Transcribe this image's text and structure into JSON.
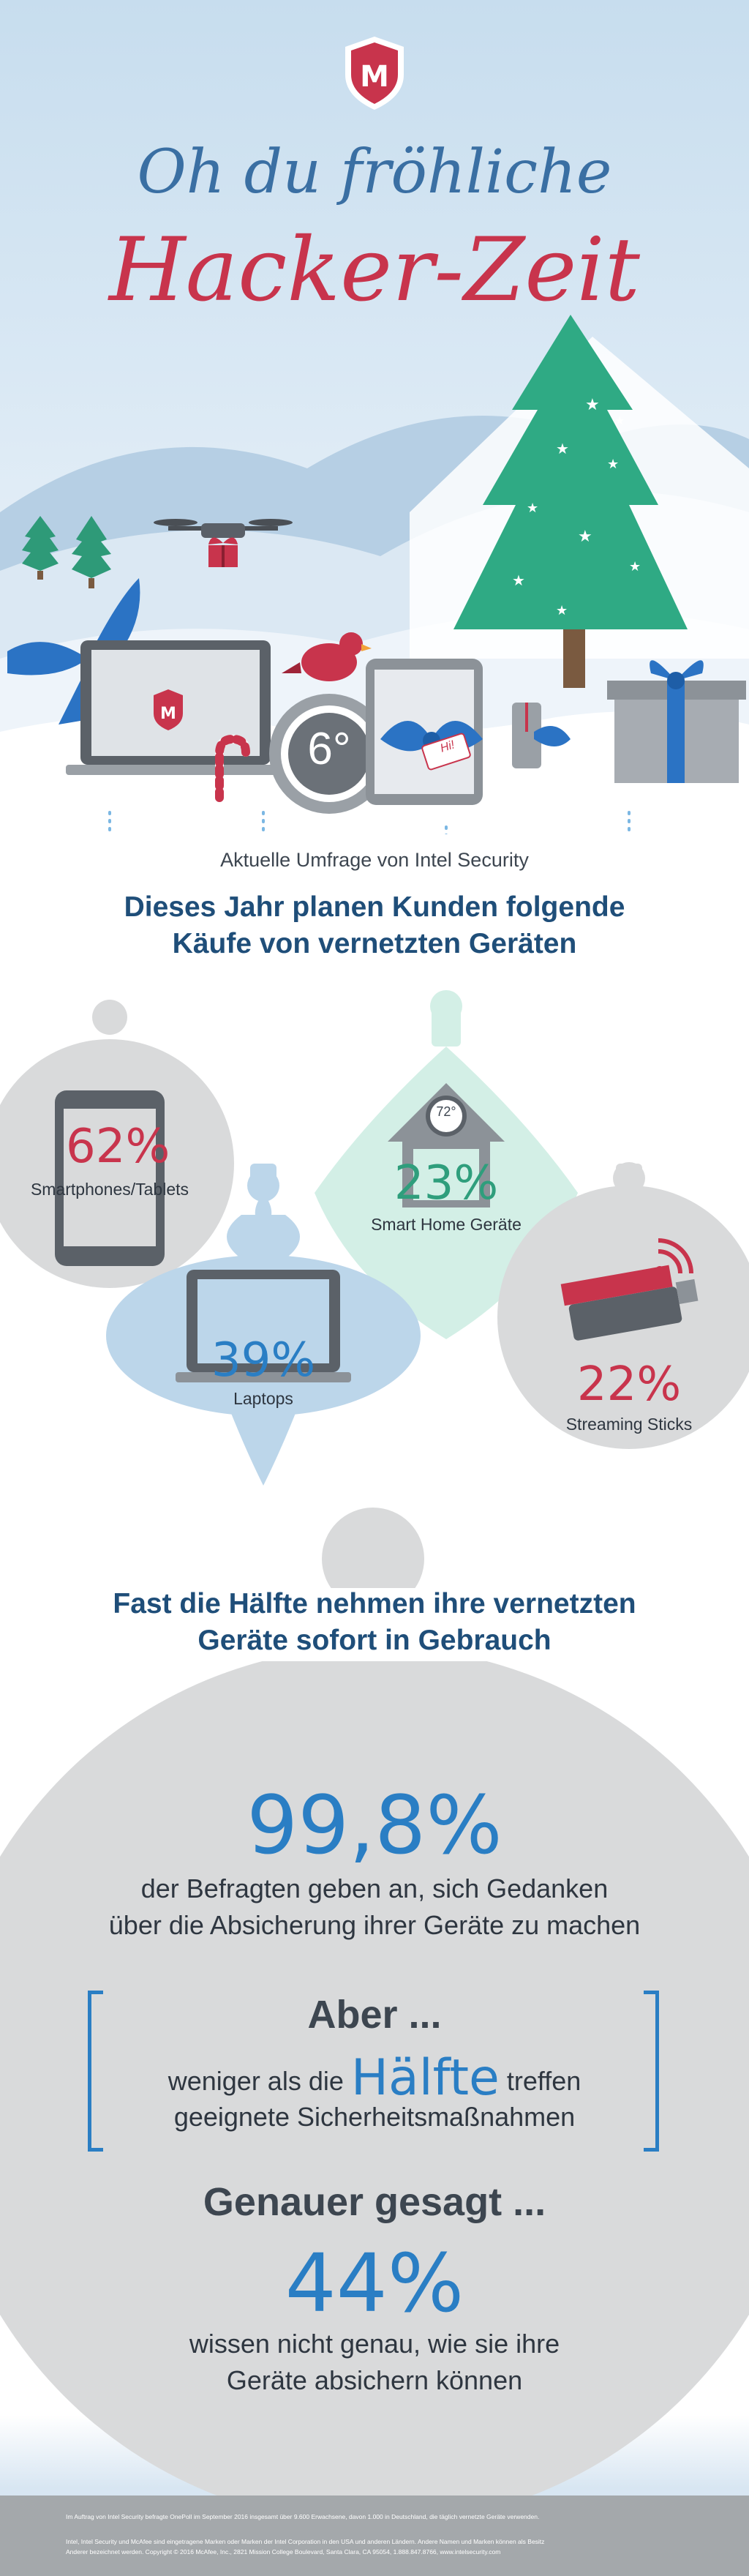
{
  "header": {
    "title_line1": "Oh du fröhliche",
    "title_line2": "Hacker-Zeit",
    "logo_icon": "mcafee-shield-icon"
  },
  "scene": {
    "thermostat_label": "6°",
    "gift_tag_text": "Hi!"
  },
  "survey": {
    "source": "Aktuelle Umfrage von Intel Security",
    "headline_line1": "Dieses Jahr planen Kunden folgende",
    "headline_line2": "Käufe von vernetzten Geräten"
  },
  "ornaments": [
    {
      "percent": "62%",
      "label": "Smartphones/Tablets",
      "icon": "smartphone-icon"
    },
    {
      "percent": "23%",
      "label": "Smart Home Geräte",
      "icon": "smart-home-icon",
      "badge": "72°"
    },
    {
      "percent": "39%",
      "label": "Laptops",
      "icon": "laptop-icon"
    },
    {
      "percent": "22%",
      "label": "Streaming Sticks",
      "icon": "streaming-stick-icon"
    }
  ],
  "chart_data": {
    "type": "bar",
    "title": "Dieses Jahr planen Kunden folgende Käufe von vernetzten Geräten",
    "categories": [
      "Smartphones/Tablets",
      "Smart Home Geräte",
      "Laptops",
      "Streaming Sticks"
    ],
    "values": [
      62,
      23,
      39,
      22
    ],
    "unit": "%"
  },
  "usage": {
    "line1": "Fast die Hälfte nehmen ihre vernetzten",
    "line2": "Geräte sofort in Gebrauch"
  },
  "security": {
    "stat": "99,8%",
    "stat_line1": "der Befragten geben an, sich Gedanken",
    "stat_line2": "über die Absicherung ihrer Geräte zu machen",
    "but_title": "Aber ...",
    "but_pre": "weniger als die",
    "but_highlight": "Hälfte",
    "but_post": "treffen",
    "but_line2": "geeignete Sicherheitsmaßnahmen",
    "precise_title": "Genauer gesagt ...",
    "precise_stat": "44%",
    "precise_line1": "wissen nicht genau, wie sie ihre",
    "precise_line2": "Geräte absichern können"
  },
  "footer": {
    "note1": "Im Auftrag von Intel Security befragte OnePoll im September 2016 insgesamt über 9.600 Erwachsene, davon 1.000 in Deutschland, die täglich vernetzte Geräte verwenden.",
    "note2": "Intel, Intel Security und McAfee sind eingetragene Marken oder Marken der Intel Corporation in den USA und anderen Ländern. Andere Namen und Marken können als Besitz",
    "note3": "Anderer bezeichnet werden. Copyright © 2016 McAfee, Inc., 2821 Mission College Boulevard, Santa Clara, CA 95054, 1.888.847.8766, www.intelsecurity.com"
  },
  "colors": {
    "title_blue": "#3a6fa3",
    "title_red": "#c8344c",
    "stat_red": "#c8344c",
    "stat_blue": "#2a7ec4",
    "stat_green": "#2f9e7c",
    "headline_navy": "#1f4e79",
    "ornament_grey": "#d9dadb",
    "ornament_blue": "#bcd6ea",
    "ornament_mint": "#d3efe6",
    "footer_grey": "#a4a8ab"
  }
}
